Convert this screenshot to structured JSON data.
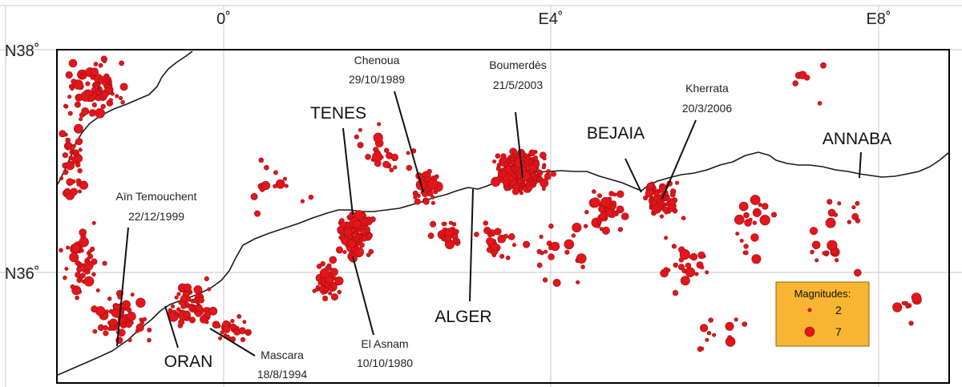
{
  "axes": {
    "longitude_labels": [
      "0˚",
      "E4˚",
      "E8˚"
    ],
    "latitude_labels": [
      "N38˚",
      "N36˚"
    ]
  },
  "cities": [
    "TENES",
    "ALGER",
    "BEJAIA",
    "ANNABA",
    "ORAN"
  ],
  "events": [
    {
      "name": "Chenoua",
      "date": "29/10/1989"
    },
    {
      "name": "Boumerdès",
      "date": "21/5/2003"
    },
    {
      "name": "Kherrata",
      "date": "20/3/2006"
    },
    {
      "name": "Aïn Temouchent",
      "date": "22/12/1999"
    },
    {
      "name": "Mascara",
      "date": "18/8/1994"
    },
    {
      "name": "El Asnam",
      "date": "10/10/1980"
    }
  ],
  "legend": {
    "title": "Magnitudes:",
    "small_value": "2",
    "large_value": "7"
  },
  "colors": {
    "quake": "#e2161b",
    "legend_fill": "#f7b531",
    "coastline": "#1a1a1a"
  }
}
